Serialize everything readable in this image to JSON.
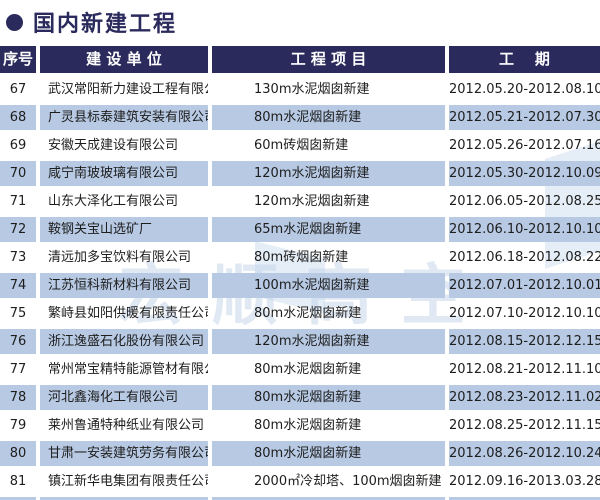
{
  "title": {
    "text": "国内新建工程"
  },
  "colors": {
    "navy": "#2a2a5c",
    "row_blue": "#b7c9e3",
    "white": "#ffffff"
  },
  "watermark": {
    "text": "宏顺高空"
  },
  "table": {
    "headers": [
      "序号",
      "建 设 单 位",
      "工 程 项 目",
      "工    期"
    ],
    "rows": [
      {
        "no": "67",
        "company": "武汉常阳新力建设工程有限公司",
        "project": "130m水泥烟囱新建",
        "period": "2012.05.20-2012.08.10"
      },
      {
        "no": "68",
        "company": "广灵县标泰建筑安装有限公司",
        "project": "80m水泥烟囱新建",
        "period": "2012.05.21-2012.07.30"
      },
      {
        "no": "69",
        "company": "安徽天成建设有限公司",
        "project": "60m砖烟囱新建",
        "period": "2012.05.26-2012.07.16"
      },
      {
        "no": "70",
        "company": "咸宁南玻玻璃有限公司",
        "project": "120m水泥烟囱新建",
        "period": "2012.05.30-2012.10.09"
      },
      {
        "no": "71",
        "company": "山东大泽化工有限公司",
        "project": "120m水泥烟囱新建",
        "period": "2012.06.05-2012.08.25"
      },
      {
        "no": "72",
        "company": "鞍钢关宝山选矿厂",
        "project": "65m水泥烟囱新建",
        "period": "2012.06.10-2012.10.10"
      },
      {
        "no": "73",
        "company": "清远加多宝饮料有限公司",
        "project": "80m砖烟囱新建",
        "period": "2012.06.18-2012.08.22"
      },
      {
        "no": "74",
        "company": "江苏恒科新材料有限公司",
        "project": "100m水泥烟囱新建",
        "period": "2012.07.01-2012.10.01"
      },
      {
        "no": "75",
        "company": "繁峙县如阳供暖有限责任公司",
        "project": "80m水泥烟囱新建",
        "period": "2012.07.10-2012.10.10"
      },
      {
        "no": "76",
        "company": "浙江逸盛石化股份有限公司",
        "project": "120m水泥烟囱新建",
        "period": "2012.08.15-2012.12.15"
      },
      {
        "no": "77",
        "company": "常州常宝精特能源管材有限公司",
        "project": "80m水泥烟囱新建",
        "period": "2012.08.21-2012.11.10"
      },
      {
        "no": "78",
        "company": "河北鑫海化工有限公司",
        "project": "80m水泥烟囱新建",
        "period": "2012.08.23-2012.11.02"
      },
      {
        "no": "79",
        "company": "莱州鲁通特种纸业有限公司",
        "project": "80m水泥烟囱新建",
        "period": "2012.08.25-2012.11.15"
      },
      {
        "no": "80",
        "company": "甘肃一安装建筑劳务有限公司",
        "project": "80m水泥烟囱新建",
        "period": "2012.08.26-2012.10.24"
      },
      {
        "no": "81",
        "company": "镇江新华电集团有限责任公司",
        "project": "2000㎡冷却塔、100m烟囱新建",
        "period": "2012.09.16-2013.03.28"
      }
    ]
  }
}
